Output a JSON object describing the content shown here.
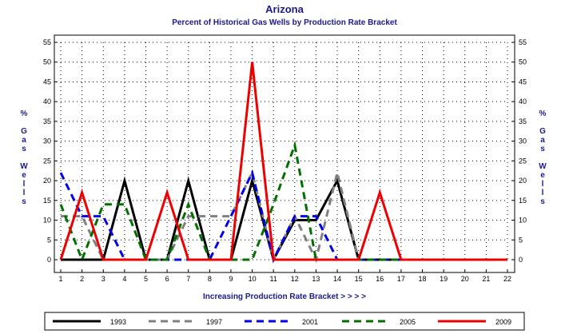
{
  "chart_data": {
    "type": "line",
    "title": "Arizona",
    "subtitle": "Percent of Historical Gas Wells by Production Rate Bracket",
    "xlabel": "Increasing Production Rate Bracket > > > >",
    "ylabel": "% Gas Wells",
    "x": [
      1,
      2,
      3,
      4,
      5,
      6,
      7,
      8,
      9,
      10,
      11,
      12,
      13,
      14,
      15,
      16,
      17,
      18,
      19,
      20,
      21,
      22
    ],
    "xlim": [
      1,
      22
    ],
    "ylim": [
      0,
      55
    ],
    "yticks": [
      0,
      5,
      10,
      15,
      20,
      25,
      30,
      35,
      40,
      45,
      50,
      55
    ],
    "grid": true,
    "legend_position": "bottom",
    "series": [
      {
        "name": "1993",
        "color": "#000000",
        "dash": "solid",
        "values": [
          0,
          0,
          0,
          20,
          0,
          0,
          20,
          0,
          0,
          20,
          0,
          10,
          10,
          20,
          0,
          0,
          0,
          0,
          0,
          0,
          0,
          0
        ]
      },
      {
        "name": "1997",
        "color": "#808080",
        "dash": "dashed",
        "values": [
          11,
          11,
          0,
          0,
          0,
          0,
          11,
          11,
          11,
          22,
          0,
          11,
          0,
          22,
          0,
          0,
          0,
          0,
          0,
          0,
          0,
          0
        ]
      },
      {
        "name": "2001",
        "color": "#0000ee",
        "dash": "dashed",
        "values": [
          22,
          11,
          11,
          0,
          0,
          0,
          0,
          0,
          11,
          22,
          0,
          11,
          11,
          0,
          0,
          0,
          0,
          0,
          0,
          0,
          0,
          0
        ]
      },
      {
        "name": "2005",
        "color": "#007000",
        "dash": "dashed",
        "values": [
          14,
          0,
          14,
          14,
          0,
          0,
          14,
          0,
          0,
          0,
          14,
          29,
          0,
          0,
          0,
          0,
          0,
          0,
          0,
          0,
          0,
          0
        ]
      },
      {
        "name": "2009",
        "color": "#ee0000",
        "dash": "solid",
        "values": [
          0,
          17,
          0,
          0,
          0,
          17,
          0,
          0,
          0,
          50,
          0,
          0,
          0,
          0,
          0,
          17,
          0,
          0,
          0,
          0,
          0,
          0
        ]
      }
    ]
  }
}
